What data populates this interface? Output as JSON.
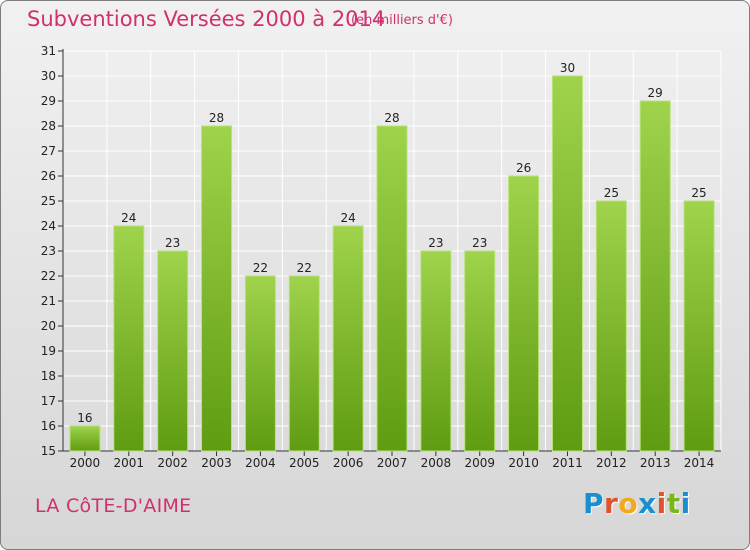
{
  "header": {
    "title": "Subventions Versées 2000 à 2014",
    "unit": "(en milliers d'€)"
  },
  "footer": {
    "commune": "LA CôTE-D'AIME",
    "logo_text": "Proxiti",
    "logo_colors": [
      "#1a8fd0",
      "#e0522a",
      "#f2a91c",
      "#1a8fd0",
      "#e0522a",
      "#7ab51d",
      "#1a8fd0"
    ]
  },
  "chart_data": {
    "type": "bar",
    "categories": [
      "2000",
      "2001",
      "2002",
      "2003",
      "2004",
      "2005",
      "2006",
      "2007",
      "2008",
      "2009",
      "2010",
      "2011",
      "2012",
      "2013",
      "2014"
    ],
    "values": [
      16,
      24,
      23,
      28,
      22,
      22,
      24,
      28,
      23,
      23,
      26,
      30,
      25,
      29,
      25
    ],
    "ylim": [
      15,
      31
    ],
    "yticks": [
      15,
      16,
      17,
      18,
      19,
      20,
      21,
      22,
      23,
      24,
      25,
      26,
      27,
      28,
      29,
      30,
      31
    ],
    "grid": true,
    "bar_color_top": "#9fd34c",
    "bar_color_bottom": "#5f9c12",
    "grid_color": "#ffffff"
  }
}
